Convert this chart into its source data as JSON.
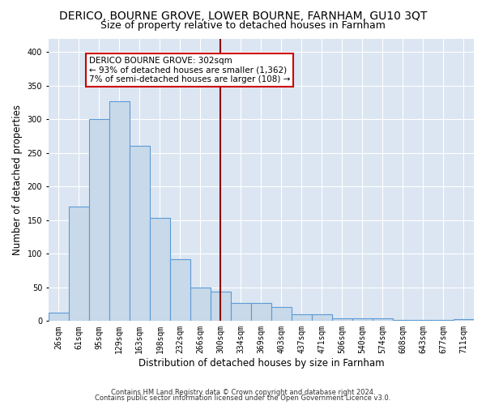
{
  "title": "DERICO, BOURNE GROVE, LOWER BOURNE, FARNHAM, GU10 3QT",
  "subtitle": "Size of property relative to detached houses in Farnham",
  "xlabel": "Distribution of detached houses by size in Farnham",
  "ylabel": "Number of detached properties",
  "footer1": "Contains HM Land Registry data © Crown copyright and database right 2024.",
  "footer2": "Contains public sector information licensed under the Open Government Licence v3.0.",
  "categories": [
    "26sqm",
    "61sqm",
    "95sqm",
    "129sqm",
    "163sqm",
    "198sqm",
    "232sqm",
    "266sqm",
    "300sqm",
    "334sqm",
    "369sqm",
    "403sqm",
    "437sqm",
    "471sqm",
    "506sqm",
    "540sqm",
    "574sqm",
    "608sqm",
    "643sqm",
    "677sqm",
    "711sqm"
  ],
  "values": [
    12,
    170,
    300,
    327,
    260,
    153,
    92,
    50,
    44,
    27,
    27,
    21,
    10,
    10,
    4,
    4,
    4,
    2,
    2,
    2,
    3
  ],
  "bar_color": "#c8d9ea",
  "bar_edge_color": "#5b9bd5",
  "property_line_x": 8.0,
  "property_label": "DERICO BOURNE GROVE: 302sqm",
  "annotation_line1": "← 93% of detached houses are smaller (1,362)",
  "annotation_line2": "7% of semi-detached houses are larger (108) →",
  "property_line_color": "#8b0000",
  "annotation_box_edgecolor": "#cc0000",
  "annotation_text_color": "#000000",
  "ylim": [
    0,
    420
  ],
  "yticks": [
    0,
    50,
    100,
    150,
    200,
    250,
    300,
    350,
    400
  ],
  "background_color": "#dce6f2",
  "grid_color": "#ffffff",
  "title_fontsize": 10,
  "subtitle_fontsize": 9,
  "axis_label_fontsize": 8.5,
  "tick_fontsize": 7,
  "annotation_fontsize": 7.5,
  "footer_fontsize": 6
}
